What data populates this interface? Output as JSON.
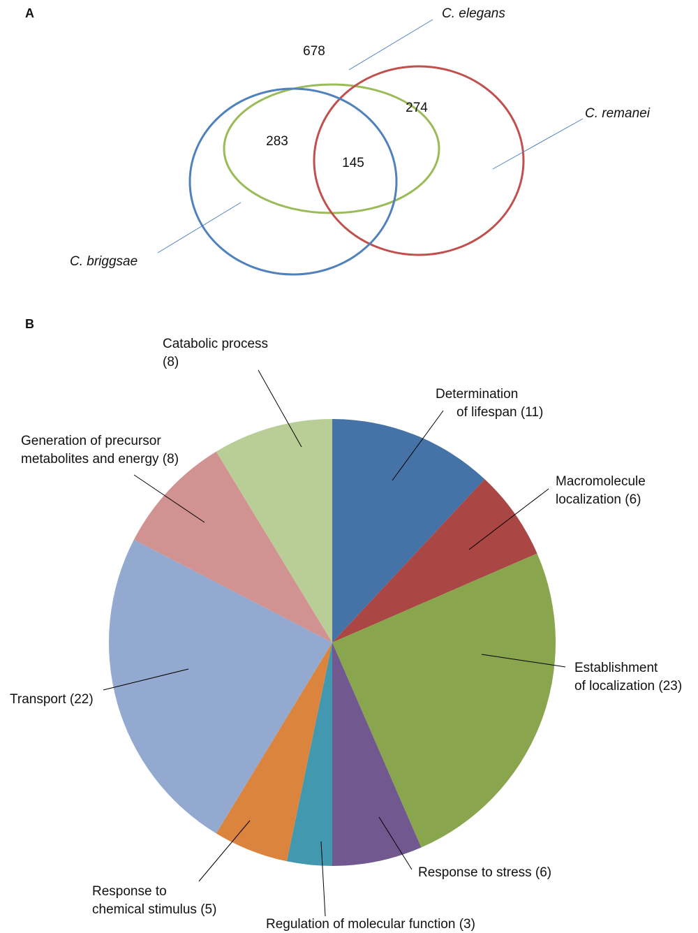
{
  "chart_data": [
    {
      "type": "venn",
      "panel": "A",
      "sets": [
        {
          "name": "C. elegans",
          "color": "#9bbb59"
        },
        {
          "name": "C. remanei",
          "color": "#c0504d"
        },
        {
          "name": "C. briggsae",
          "color": "#4f81bd"
        }
      ],
      "regions": [
        {
          "sets": [
            "C. elegans"
          ],
          "value": 678
        },
        {
          "sets": [
            "C. elegans",
            "C. remanei"
          ],
          "value": 274
        },
        {
          "sets": [
            "C. elegans",
            "C. briggsae"
          ],
          "value": 283
        },
        {
          "sets": [
            "C. elegans",
            "C. remanei",
            "C. briggsae"
          ],
          "value": 145
        }
      ]
    },
    {
      "type": "pie",
      "panel": "B",
      "categories": [
        [
          "Determination",
          "of lifespan (11)"
        ],
        [
          "Macromolecule",
          "localization (6)"
        ],
        [
          "Establishment",
          "of localization (23)"
        ],
        [
          "Response to stress (6)"
        ],
        [
          "Regulation of molecular function (3)"
        ],
        [
          "Response to",
          "chemical stimulus (5)"
        ],
        [
          "Transport (22)"
        ],
        [
          "Generation of precursor",
          "metabolites and energy (8)"
        ],
        [
          "Catabolic process",
          "(8)"
        ]
      ],
      "values": [
        11,
        6,
        23,
        6,
        3,
        5,
        22,
        8,
        8
      ],
      "colors": [
        "#4572a7",
        "#aa4643",
        "#89a54e",
        "#71588f",
        "#4198af",
        "#db843d",
        "#93a9cf",
        "#d19392",
        "#b9cd96"
      ]
    }
  ]
}
